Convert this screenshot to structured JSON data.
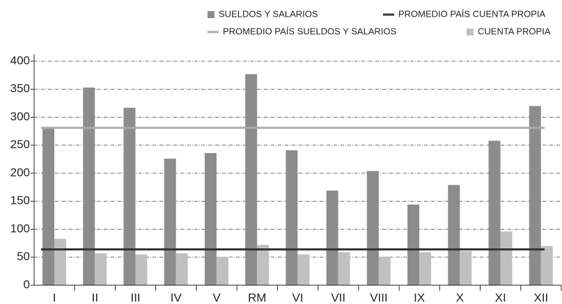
{
  "chart_data": {
    "type": "bar",
    "categories": [
      "I",
      "II",
      "III",
      "IV",
      "V",
      "RM",
      "VI",
      "VII",
      "VIII",
      "IX",
      "X",
      "XI",
      "XII"
    ],
    "series": [
      {
        "name": "SUELDOS Y SALARIOS",
        "color": "#8c8c8c",
        "values": [
          282,
          353,
          317,
          226,
          236,
          377,
          241,
          169,
          204,
          144,
          179,
          258,
          320
        ]
      },
      {
        "name": "CUENTA PROPIA",
        "color": "#c0c0c0",
        "values": [
          83,
          57,
          55,
          57,
          51,
          72,
          55,
          59,
          51,
          59,
          61,
          96,
          70
        ]
      }
    ],
    "reference_lines": [
      {
        "name": "PROMEDIO PAÍS CUENTA PROPIA",
        "color": "#333333",
        "value": 64
      },
      {
        "name": "PROMEDIO PAÍS SUELDOS Y SALARIOS",
        "color": "#aaaaaa",
        "value": 281
      }
    ],
    "ylim": [
      0,
      400
    ],
    "yticks": [
      0,
      50,
      100,
      150,
      200,
      250,
      300,
      350,
      400
    ],
    "grid": true
  }
}
